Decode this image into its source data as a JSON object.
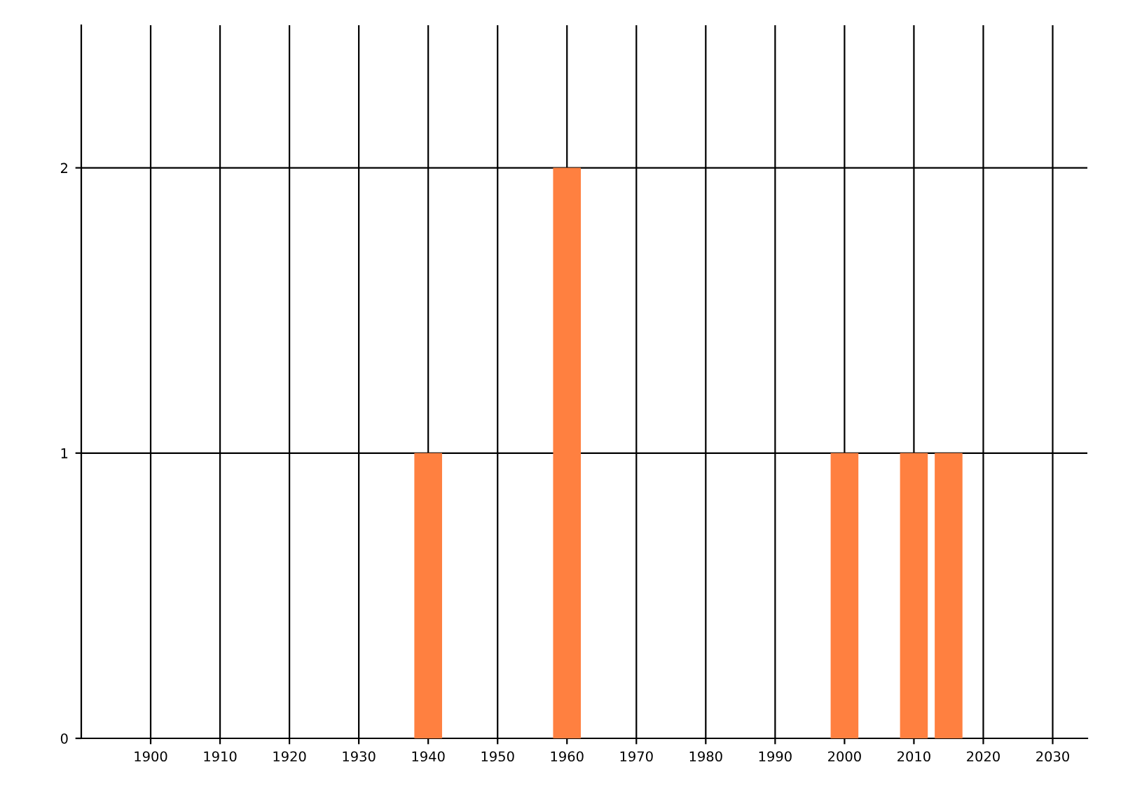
{
  "chart_data": {
    "type": "bar",
    "x": [
      1940,
      1960,
      2000,
      2010,
      2015
    ],
    "values": [
      1,
      2,
      1,
      1,
      1
    ],
    "color": "#ff8040",
    "xlim": [
      1890,
      2035
    ],
    "xticks": [
      1900,
      1910,
      1920,
      1930,
      1940,
      1950,
      1960,
      1970,
      1980,
      1990,
      2000,
      2010,
      2020,
      2030
    ],
    "ylim": [
      0,
      2.5
    ],
    "yticks": [
      0,
      1,
      2
    ],
    "grid": true
  }
}
